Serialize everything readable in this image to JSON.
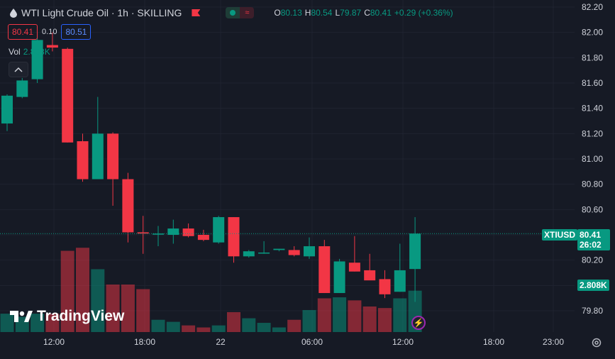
{
  "header": {
    "title": "WTI Light Crude Oil · 1h · SKILLING",
    "ohlc": {
      "o_label": "O",
      "o": "80.13",
      "h_label": "H",
      "h": "80.54",
      "l_label": "L",
      "l": "79.87",
      "c_label": "C",
      "c": "80.41",
      "change": "+0.29 (+0.36%)"
    }
  },
  "trade": {
    "sell": "80.41",
    "spread": "0.10",
    "buy": "80.51"
  },
  "volume_legend": {
    "label": "Vol",
    "value": "2.808K"
  },
  "brand": {
    "name": "TradingView"
  },
  "last_price_labels": {
    "symbol": "XTIUSD",
    "price": "80.41",
    "countdown": "26:02",
    "volume": "2.808K"
  },
  "colors": {
    "up": "#089981",
    "down": "#f23645",
    "background": "#161a25",
    "grid": "#1f2330",
    "text": "#d1d4dc"
  },
  "icons": [
    "oil-drop-icon",
    "flag-icon",
    "chevron-up-icon",
    "lightning-icon",
    "settings-gear-icon",
    "tradingview-logo-icon"
  ],
  "chart_data": {
    "type": "candlestick",
    "y_axis_labels": [
      "82.20",
      "82.00",
      "81.80",
      "81.60",
      "81.40",
      "81.20",
      "81.00",
      "80.80",
      "80.60",
      "80.40",
      "80.20",
      "80.00",
      "79.80"
    ],
    "x_axis_labels": [
      "12:00",
      "18:00",
      "22",
      "06:00",
      "12:00",
      "18:00",
      "23:00"
    ],
    "ylim": [
      79.75,
      82.22
    ],
    "last_price": 80.41,
    "candles": [
      {
        "o": 81.28,
        "h": 81.51,
        "l": 81.22,
        "c": 81.5,
        "v": 0.36
      },
      {
        "o": 81.49,
        "h": 81.64,
        "l": 81.48,
        "c": 81.62,
        "v": 0.3
      },
      {
        "o": 81.63,
        "h": 82.0,
        "l": 81.6,
        "c": 81.94,
        "v": 0.36
      },
      {
        "o": 81.9,
        "h": 82.0,
        "l": 81.85,
        "c": 81.88,
        "v": 0.36
      },
      {
        "o": 81.87,
        "h": 81.88,
        "l": 81.13,
        "c": 81.13,
        "v": 1.59
      },
      {
        "o": 81.14,
        "h": 81.2,
        "l": 80.82,
        "c": 80.84,
        "v": 1.65
      },
      {
        "o": 80.84,
        "h": 81.49,
        "l": 80.84,
        "c": 81.2,
        "v": 1.23
      },
      {
        "o": 81.2,
        "h": 81.21,
        "l": 80.63,
        "c": 80.84,
        "v": 0.93
      },
      {
        "o": 80.84,
        "h": 80.89,
        "l": 80.34,
        "c": 80.42,
        "v": 0.93
      },
      {
        "o": 80.42,
        "h": 80.55,
        "l": 80.25,
        "c": 80.41,
        "v": 0.84
      },
      {
        "o": 80.41,
        "h": 80.47,
        "l": 80.31,
        "c": 80.41,
        "v": 0.24
      },
      {
        "o": 80.4,
        "h": 80.52,
        "l": 80.33,
        "c": 80.45,
        "v": 0.2
      },
      {
        "o": 80.45,
        "h": 80.49,
        "l": 80.38,
        "c": 80.39,
        "v": 0.13
      },
      {
        "o": 80.4,
        "h": 80.44,
        "l": 80.35,
        "c": 80.36,
        "v": 0.09
      },
      {
        "o": 80.34,
        "h": 80.55,
        "l": 80.33,
        "c": 80.54,
        "v": 0.13
      },
      {
        "o": 80.54,
        "h": 80.54,
        "l": 80.18,
        "c": 80.23,
        "v": 0.39
      },
      {
        "o": 80.23,
        "h": 80.28,
        "l": 80.22,
        "c": 80.27,
        "v": 0.27
      },
      {
        "o": 80.26,
        "h": 80.35,
        "l": 80.25,
        "c": 80.26,
        "v": 0.18
      },
      {
        "o": 80.28,
        "h": 80.28,
        "l": 80.27,
        "c": 80.29,
        "v": 0.09
      },
      {
        "o": 80.28,
        "h": 80.31,
        "l": 80.23,
        "c": 80.24,
        "v": 0.24
      },
      {
        "o": 80.23,
        "h": 80.38,
        "l": 80.21,
        "c": 80.31,
        "v": 0.43
      },
      {
        "o": 80.31,
        "h": 80.36,
        "l": 79.94,
        "c": 79.94,
        "v": 0.66
      },
      {
        "o": 79.94,
        "h": 80.21,
        "l": 79.94,
        "c": 80.19,
        "v": 0.68
      },
      {
        "o": 80.18,
        "h": 80.39,
        "l": 80.11,
        "c": 80.11,
        "v": 0.62
      },
      {
        "o": 80.12,
        "h": 80.25,
        "l": 80.05,
        "c": 80.04,
        "v": 0.5
      },
      {
        "o": 80.05,
        "h": 80.12,
        "l": 79.9,
        "c": 79.93,
        "v": 0.47
      },
      {
        "o": 79.95,
        "h": 80.33,
        "l": 79.95,
        "c": 80.12,
        "v": 0.66
      },
      {
        "o": 80.13,
        "h": 80.54,
        "l": 79.87,
        "c": 80.41,
        "v": 0.81
      }
    ]
  }
}
